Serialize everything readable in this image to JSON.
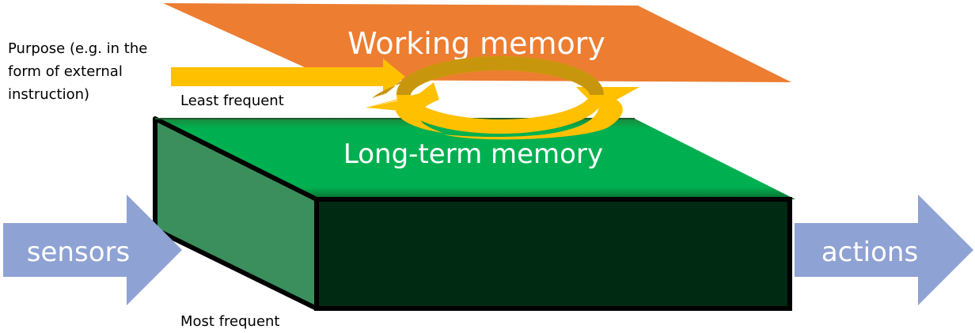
{
  "diagram": {
    "working_memory_label": "Working memory",
    "long_term_memory_label": "Long-term memory",
    "sensors_label": "sensors",
    "actions_label": "actions",
    "purpose_lines": [
      "Purpose (e.g. in the",
      "form of external",
      "instruction)"
    ],
    "least_frequent_label": "Least frequent",
    "most_frequent_label": "Most frequent"
  },
  "colors": {
    "working_memory": "#ED7D31",
    "long_term_top": "#00B050",
    "box_front": "#002A12",
    "box_side": "#3A8F5C",
    "arrow_blue": "#8FA2D4",
    "arrow_yellow": "#FFC000",
    "arrow_dark_yellow": "#C8960C"
  }
}
